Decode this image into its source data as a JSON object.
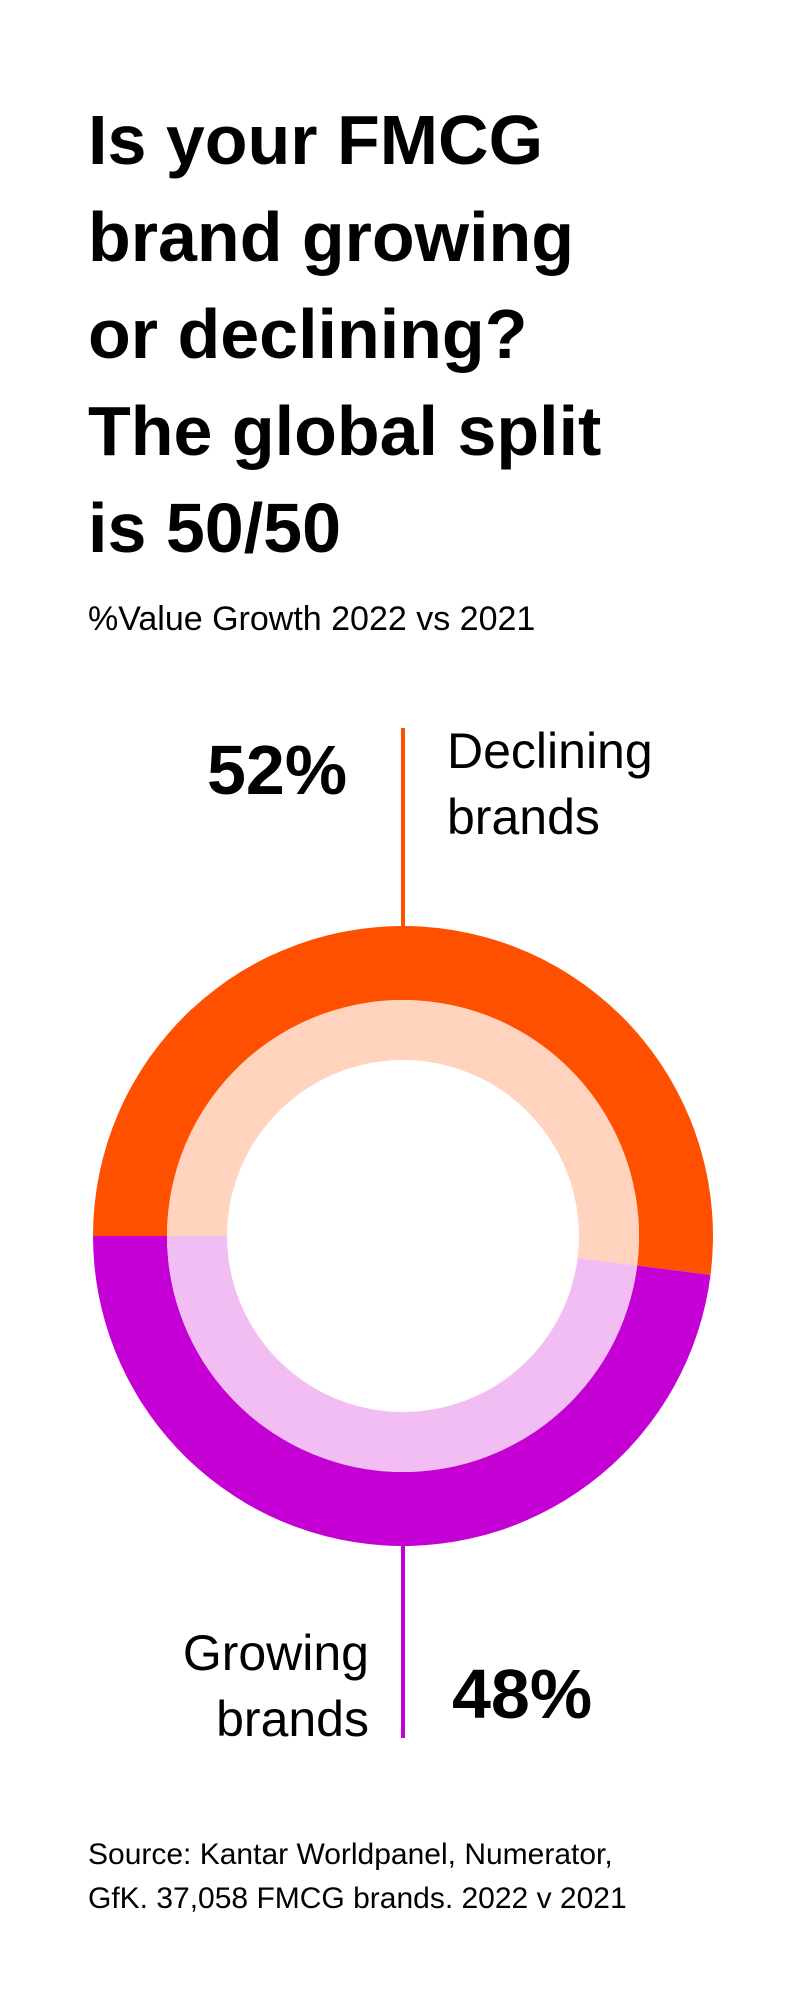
{
  "title_lines": [
    "Is your FMCG",
    "brand growing",
    "or declining?",
    "The global split",
    "is 50/50"
  ],
  "colors": {
    "declining": "#FF5000",
    "declining_light": "#FFD3BD",
    "growing": "#C400D4",
    "growing_light": "#F1BDF2",
    "text": "#000000"
  },
  "chart_data": {
    "type": "pie",
    "subtitle": "%Value Growth 2022 vs 2021",
    "segments": [
      {
        "key": "declining",
        "value": 52,
        "value_label": "52%",
        "label_lines": [
          "Declining",
          "brands"
        ]
      },
      {
        "key": "growing",
        "value": 48,
        "value_label": "48%",
        "label_lines": [
          "Growing",
          "brands"
        ]
      }
    ]
  },
  "source_lines": [
    "Source: Kantar Worldpanel, Numerator,",
    "GfK. 37,058 FMCG brands. 2022 v 2021"
  ]
}
